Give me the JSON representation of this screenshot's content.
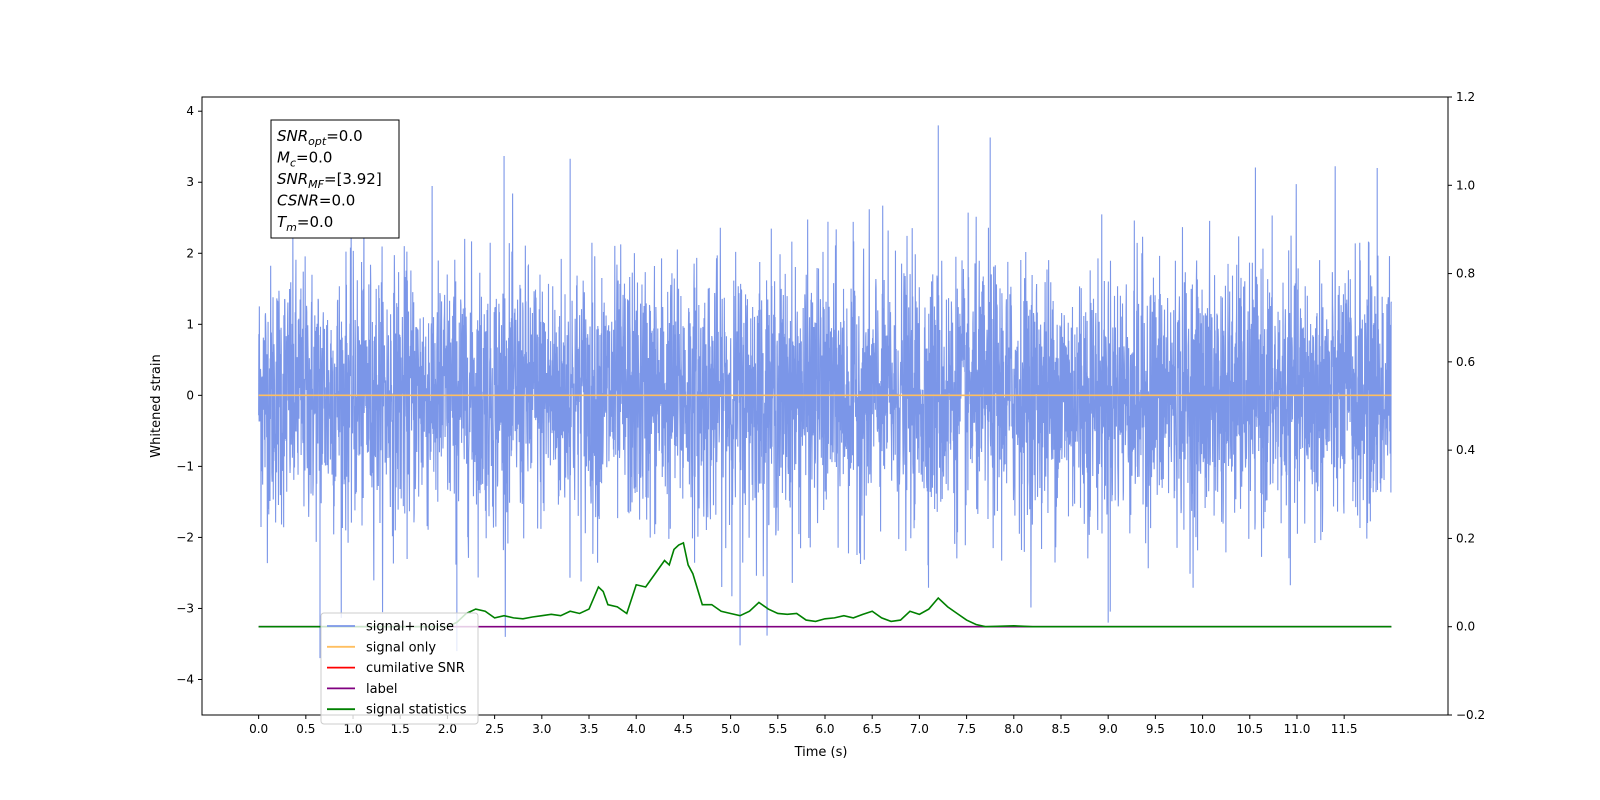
{
  "chart_data": {
    "type": "line",
    "title": "",
    "xlabel": "Time (s)",
    "ylabel": "Whitened strain",
    "xlim": [
      -0.6,
      12.6
    ],
    "ylim": [
      -4.5,
      4.2
    ],
    "y2lim": [
      -0.2,
      1.2
    ],
    "xticks": [
      "0.0",
      "0.5",
      "1.0",
      "1.5",
      "2.0",
      "2.5",
      "3.0",
      "3.5",
      "4.0",
      "4.5",
      "5.0",
      "5.5",
      "6.0",
      "6.5",
      "7.0",
      "7.5",
      "8.0",
      "8.5",
      "9.0",
      "9.5",
      "10.0",
      "10.5",
      "11.0",
      "11.5"
    ],
    "yticks": [
      "4",
      "3",
      "2",
      "1",
      "0",
      "−1",
      "−2",
      "−3",
      "−4"
    ],
    "y2ticks": [
      "1.2",
      "1.0",
      "0.8",
      "0.6",
      "0.4",
      "0.2",
      "0.0",
      "−0.2"
    ],
    "grid": false,
    "legend_position": "lower-left",
    "annotation": [
      {
        "base": "SNR",
        "sub": "opt",
        "value": "=0.0"
      },
      {
        "base": "M",
        "sub": "c",
        "value": "=0.0"
      },
      {
        "base": "SNR",
        "sub": "MF",
        "value": "=[3.92]"
      },
      {
        "base": "CSNR",
        "sub": "",
        "value": "=0.0"
      },
      {
        "base": "T",
        "sub": "m",
        "value": "=0.0"
      }
    ],
    "series": [
      {
        "name": "signal+ noise",
        "color": "#7b96e8",
        "axis": "left",
        "x_range": [
          0.0,
          12.0
        ],
        "amplitude_std": 0.9,
        "extremes": {
          "max": 3.8,
          "min": -3.7
        }
      },
      {
        "name": "signal only",
        "color": "#ffbf60",
        "axis": "left",
        "x": [
          0.0,
          12.0
        ],
        "y": [
          0.0,
          0.0
        ]
      },
      {
        "name": "cumilative SNR",
        "color": "#ff0000",
        "axis": "right",
        "x": [],
        "y": []
      },
      {
        "name": "label",
        "color": "#800080",
        "axis": "right",
        "x": [
          0.0,
          12.0
        ],
        "y": [
          0.0,
          0.0
        ]
      },
      {
        "name": "signal statistics",
        "color": "#008000",
        "axis": "right",
        "x": [
          0.0,
          1.0,
          1.5,
          2.0,
          2.1,
          2.2,
          2.3,
          2.4,
          2.5,
          2.6,
          2.7,
          2.8,
          2.9,
          3.0,
          3.1,
          3.2,
          3.3,
          3.4,
          3.5,
          3.6,
          3.65,
          3.7,
          3.8,
          3.9,
          4.0,
          4.1,
          4.2,
          4.3,
          4.35,
          4.4,
          4.45,
          4.5,
          4.55,
          4.6,
          4.7,
          4.8,
          4.9,
          5.0,
          5.1,
          5.2,
          5.3,
          5.4,
          5.5,
          5.6,
          5.7,
          5.8,
          5.9,
          6.0,
          6.1,
          6.2,
          6.3,
          6.4,
          6.5,
          6.6,
          6.7,
          6.8,
          6.9,
          7.0,
          7.1,
          7.2,
          7.3,
          7.4,
          7.5,
          7.6,
          7.7,
          8.0,
          8.2,
          12.0
        ],
        "y": [
          0.0,
          0.0,
          0.0,
          0.0,
          0.01,
          0.03,
          0.04,
          0.035,
          0.02,
          0.025,
          0.02,
          0.018,
          0.022,
          0.025,
          0.028,
          0.025,
          0.035,
          0.03,
          0.04,
          0.09,
          0.08,
          0.05,
          0.045,
          0.03,
          0.095,
          0.09,
          0.12,
          0.15,
          0.14,
          0.175,
          0.185,
          0.19,
          0.14,
          0.12,
          0.05,
          0.05,
          0.035,
          0.03,
          0.025,
          0.035,
          0.055,
          0.04,
          0.03,
          0.028,
          0.03,
          0.015,
          0.012,
          0.018,
          0.02,
          0.025,
          0.02,
          0.028,
          0.035,
          0.02,
          0.012,
          0.015,
          0.035,
          0.028,
          0.04,
          0.065,
          0.045,
          0.03,
          0.015,
          0.005,
          0.0,
          0.002,
          0.0,
          0.0
        ]
      }
    ]
  }
}
